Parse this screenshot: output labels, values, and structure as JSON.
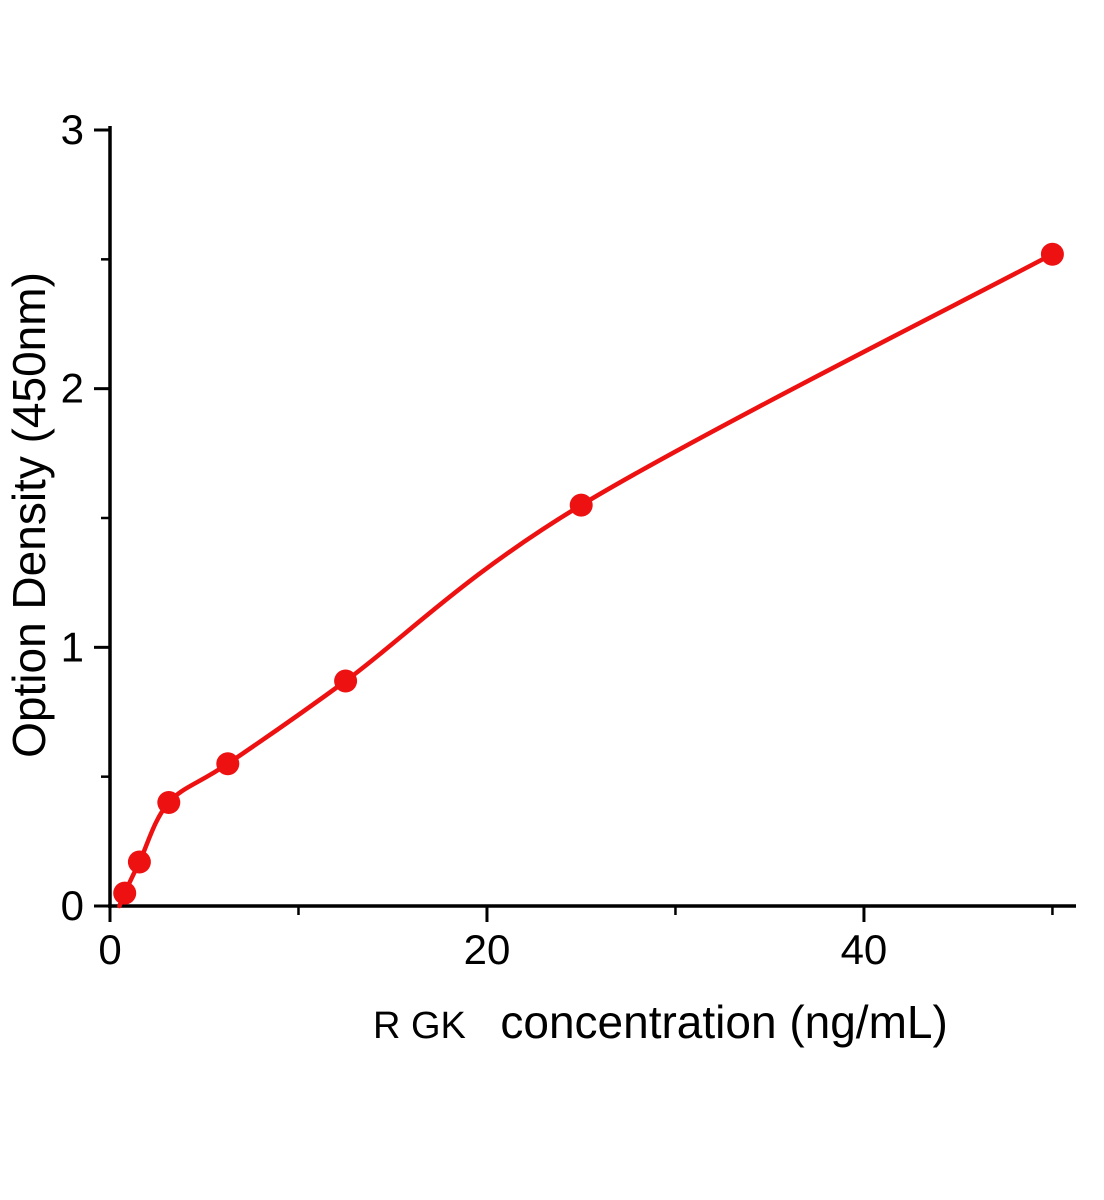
{
  "figure": {
    "background": "#ffffff"
  },
  "chart_data": {
    "type": "scatter",
    "title": "",
    "xlabel_prefix": "R GK",
    "xlabel": "concentration (ng/mL)",
    "ylabel": "Option Density  (450nm)",
    "xlim": [
      0,
      51.25
    ],
    "ylim": [
      0,
      3
    ],
    "x_ticks": [
      0,
      20,
      40
    ],
    "x_tick_labels": [
      "0",
      "20",
      "40"
    ],
    "x_minor_ticks": [
      10,
      30,
      50
    ],
    "y_ticks": [
      0,
      1,
      2,
      3
    ],
    "y_tick_labels": [
      "0",
      "1",
      "2",
      "3"
    ],
    "y_minor_ticks": [
      0.5,
      1.5,
      2.5
    ],
    "grid": "off",
    "legend": "none",
    "curve_color": "#ee1111",
    "point_color": "#ee1111",
    "axis_color": "#000000",
    "curve_start": {
      "x": 0.5,
      "y": 0.0
    },
    "points": [
      {
        "x": 0.78,
        "y": 0.05
      },
      {
        "x": 1.56,
        "y": 0.17
      },
      {
        "x": 3.12,
        "y": 0.4
      },
      {
        "x": 6.25,
        "y": 0.55
      },
      {
        "x": 12.5,
        "y": 0.87
      },
      {
        "x": 25,
        "y": 1.55
      },
      {
        "x": 50,
        "y": 2.52
      }
    ]
  }
}
